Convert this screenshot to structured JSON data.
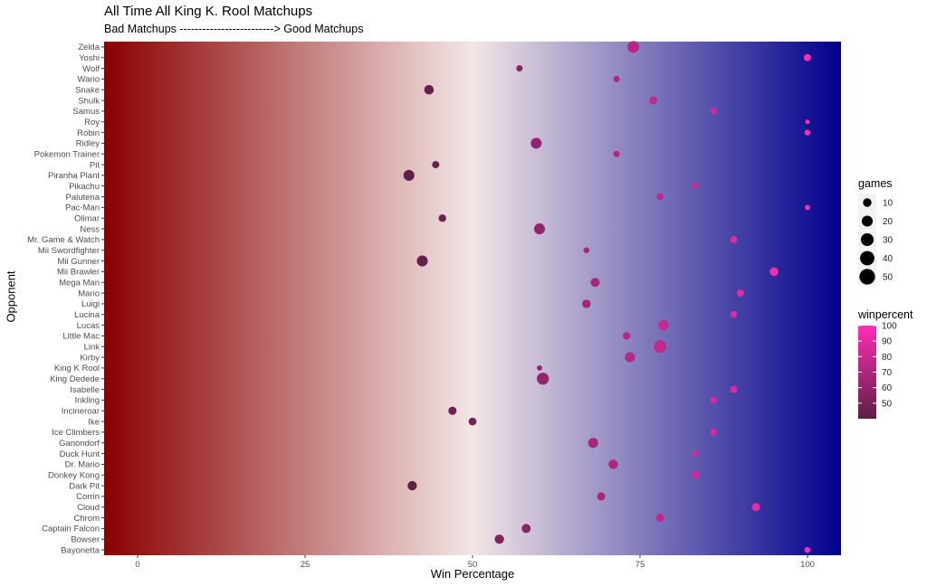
{
  "chart_data": {
    "type": "scatter",
    "title": "All Time All King K. Rool Matchups",
    "subtitle": "Bad Matchups -------------------------> Good Matchups",
    "xlabel": "Win Percentage",
    "ylabel": "Opponent",
    "xlim": [
      -5,
      105
    ],
    "xticks": [
      0,
      25,
      50,
      75,
      100
    ],
    "background_gradient": {
      "low": "#8b0000",
      "mid": "#f3e6e6",
      "high": "#00008b"
    },
    "color_scale": {
      "name": "winpercent",
      "low": "#5c1f45",
      "high": "#ff2db6",
      "domain": [
        40,
        100
      ],
      "ticks": [
        50,
        60,
        70,
        80,
        90,
        100
      ]
    },
    "size_scale": {
      "name": "games",
      "ticks": [
        10,
        20,
        30,
        40,
        50
      ],
      "max_games": 55
    },
    "legend_position": "right",
    "points": [
      {
        "opponent": "Bayonetta",
        "winpercent": 100,
        "games": 3
      },
      {
        "opponent": "Bowser",
        "winpercent": 54,
        "games": 13
      },
      {
        "opponent": "Captain Falcon",
        "winpercent": 58,
        "games": 12
      },
      {
        "opponent": "Chrom",
        "winpercent": 78,
        "games": 9
      },
      {
        "opponent": "Cloud",
        "winpercent": 92.3,
        "games": 9
      },
      {
        "opponent": "Corrin",
        "winpercent": 69.2,
        "games": 9
      },
      {
        "opponent": "Dark Pit",
        "winpercent": 41,
        "games": 13
      },
      {
        "opponent": "Donkey Kong",
        "winpercent": 83.3,
        "games": 7
      },
      {
        "opponent": "Dr. Mario",
        "winpercent": 71,
        "games": 13
      },
      {
        "opponent": "Duck Hunt",
        "winpercent": 83.3,
        "games": 3
      },
      {
        "opponent": "Ganondorf",
        "winpercent": 68,
        "games": 16
      },
      {
        "opponent": "Ice Climbers",
        "winpercent": 86,
        "games": 5
      },
      {
        "opponent": "Ike",
        "winpercent": 50,
        "games": 8
      },
      {
        "opponent": "Incineroar",
        "winpercent": 47,
        "games": 9
      },
      {
        "opponent": "Inkling",
        "winpercent": 86,
        "games": 5
      },
      {
        "opponent": "Isabelle",
        "winpercent": 89,
        "games": 6
      },
      {
        "opponent": "King Dedede",
        "winpercent": 60.5,
        "games": 26
      },
      {
        "opponent": "King K Rool",
        "winpercent": 60,
        "games": 2
      },
      {
        "opponent": "Kirby",
        "winpercent": 73.5,
        "games": 16
      },
      {
        "opponent": "Link",
        "winpercent": 78,
        "games": 30
      },
      {
        "opponent": "Little Mac",
        "winpercent": 73,
        "games": 7
      },
      {
        "opponent": "Lucas",
        "winpercent": 78.5,
        "games": 17
      },
      {
        "opponent": "Lucina",
        "winpercent": 89,
        "games": 5
      },
      {
        "opponent": "Luigi",
        "winpercent": 67,
        "games": 10
      },
      {
        "opponent": "Mario",
        "winpercent": 90,
        "games": 6
      },
      {
        "opponent": "Mega Man",
        "winpercent": 68.3,
        "games": 12
      },
      {
        "opponent": "Mii Brawler",
        "winpercent": 95,
        "games": 11
      },
      {
        "opponent": "Mii Gunner",
        "winpercent": 42.5,
        "games": 20
      },
      {
        "opponent": "Mii Swordfighter",
        "winpercent": 67,
        "games": 3
      },
      {
        "opponent": "Mr. Game & Watch",
        "winpercent": 89,
        "games": 5
      },
      {
        "opponent": "Ness",
        "winpercent": 60,
        "games": 20
      },
      {
        "opponent": "Olimar",
        "winpercent": 45.5,
        "games": 7
      },
      {
        "opponent": "Pac-Man",
        "winpercent": 100,
        "games": 2
      },
      {
        "opponent": "Palutena",
        "winpercent": 78,
        "games": 5
      },
      {
        "opponent": "Pikachu",
        "winpercent": 83.3,
        "games": 2
      },
      {
        "opponent": "Piranha Plant",
        "winpercent": 40.5,
        "games": 20
      },
      {
        "opponent": "Pit",
        "winpercent": 44.5,
        "games": 6
      },
      {
        "opponent": "Pokemon Trainer",
        "winpercent": 71.5,
        "games": 4
      },
      {
        "opponent": "Ridley",
        "winpercent": 59.5,
        "games": 20
      },
      {
        "opponent": "Robin",
        "winpercent": 100,
        "games": 3
      },
      {
        "opponent": "Roy",
        "winpercent": 100,
        "games": 1
      },
      {
        "opponent": "Samus",
        "winpercent": 86,
        "games": 4
      },
      {
        "opponent": "Shulk",
        "winpercent": 77,
        "games": 8
      },
      {
        "opponent": "Snake",
        "winpercent": 43.5,
        "games": 14
      },
      {
        "opponent": "Wario",
        "winpercent": 71.5,
        "games": 4
      },
      {
        "opponent": "Wolf",
        "winpercent": 57,
        "games": 4
      },
      {
        "opponent": "Yoshi",
        "winpercent": 100,
        "games": 6
      },
      {
        "opponent": "Zelda",
        "winpercent": 74,
        "games": 25
      }
    ]
  }
}
